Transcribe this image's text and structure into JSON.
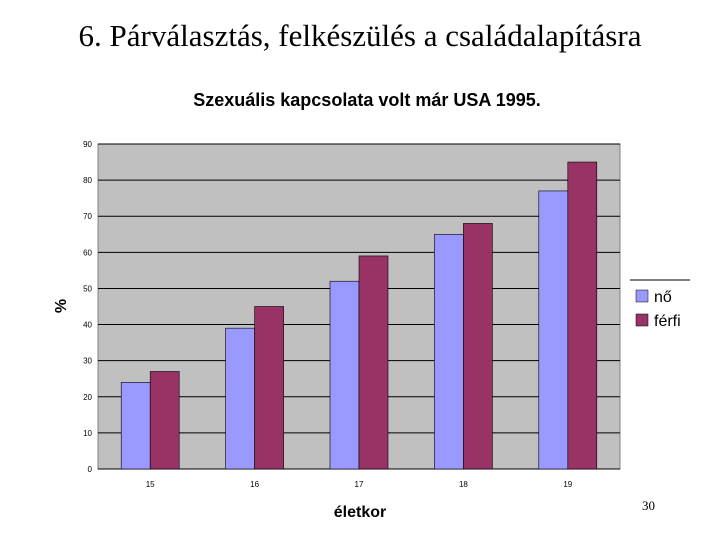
{
  "slide": {
    "title": "6. Párválasztás, felkészülés a családalapításra",
    "page_number": "30"
  },
  "colors": {
    "plot_background": "#c0c0c0",
    "no": "#9999ff",
    "ferfi": "#993366",
    "gridline": "#000000"
  },
  "chart_data": {
    "type": "bar",
    "title": "Szexuális kapcsolata volt már USA 1995.",
    "xlabel": "életkor",
    "ylabel": "%",
    "categories": [
      "15",
      "16",
      "17",
      "18",
      "19"
    ],
    "series": [
      {
        "name": "nő",
        "values": [
          24,
          39,
          52,
          65,
          77
        ]
      },
      {
        "name": "férfi",
        "values": [
          27,
          45,
          59,
          68,
          85
        ]
      }
    ],
    "ylim": [
      0,
      90
    ],
    "yticks": [
      0,
      10,
      20,
      30,
      40,
      50,
      60,
      70,
      80,
      90
    ],
    "grid": true,
    "legend": "right"
  }
}
